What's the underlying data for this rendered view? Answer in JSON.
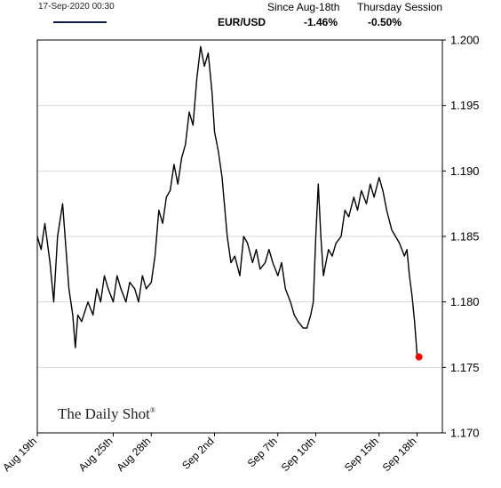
{
  "header": {
    "timestamp": "17-Sep-2020 00:30",
    "since_label": "Since Aug-18th",
    "session_label": "Thursday Session",
    "series_label": "EUR/USD",
    "since_value": "-1.46%",
    "session_value": "-0.50%"
  },
  "watermark": {
    "text": "The Daily Shot",
    "mark": "®"
  },
  "colors": {
    "line": "#000000",
    "legend": "#0b1a3e",
    "endpoint": "#ff0000",
    "grid": "#d9d9d9",
    "border": "#000000"
  },
  "chart_data": {
    "type": "line",
    "title": "",
    "xlabel": "",
    "ylabel": "",
    "ylim": [
      1.17,
      1.2
    ],
    "y_ticks": [
      "1.200",
      "1.195",
      "1.190",
      "1.185",
      "1.180",
      "1.175",
      "1.170"
    ],
    "y_tick_values": [
      1.2,
      1.195,
      1.19,
      1.185,
      1.18,
      1.175,
      1.17
    ],
    "grid": "horizontal",
    "x_ticks": [
      "Aug 19th",
      "Aug 25th",
      "Aug 28th",
      "Sep 2nd",
      "Sep 7th",
      "Sep 10th",
      "Sep 15th",
      "Sep 18th"
    ],
    "x_tick_days": [
      0,
      6,
      9,
      14,
      19,
      22,
      27,
      30
    ],
    "xlim_days": [
      0,
      32
    ],
    "series": [
      {
        "name": "EUR/USD",
        "x_days": [
          0,
          0.3,
          0.6,
          1.0,
          1.3,
          1.6,
          2.0,
          2.5,
          2.8,
          3.0,
          3.2,
          3.5,
          4.0,
          4.4,
          4.7,
          5.0,
          5.3,
          5.6,
          6.0,
          6.3,
          6.6,
          7.0,
          7.3,
          7.7,
          8.0,
          8.3,
          8.6,
          9.0,
          9.3,
          9.6,
          9.9,
          10.2,
          10.5,
          10.8,
          11.1,
          11.4,
          11.7,
          12.0,
          12.3,
          12.6,
          12.9,
          13.2,
          13.5,
          13.8,
          14.0,
          14.3,
          14.6,
          15.0,
          15.3,
          15.6,
          16.0,
          16.3,
          16.6,
          17.0,
          17.3,
          17.6,
          18.0,
          18.3,
          18.6,
          19.0,
          19.3,
          19.6,
          20.0,
          20.3,
          20.6,
          21.0,
          21.3,
          21.6,
          21.8,
          22.0,
          22.2,
          22.4,
          22.6,
          22.8,
          23.0,
          23.3,
          23.6,
          24.0,
          24.3,
          24.6,
          25.0,
          25.3,
          25.6,
          26.0,
          26.3,
          26.6,
          27.0,
          27.3,
          27.6,
          28.0,
          28.3,
          28.6,
          29.0,
          29.2,
          29.4,
          29.6,
          29.8,
          30.0,
          30.15
        ],
        "values": [
          1.185,
          1.184,
          1.186,
          1.183,
          1.18,
          1.185,
          1.1875,
          1.181,
          1.179,
          1.1765,
          1.179,
          1.1785,
          1.18,
          1.179,
          1.181,
          1.18,
          1.182,
          1.181,
          1.18,
          1.182,
          1.181,
          1.18,
          1.1815,
          1.181,
          1.18,
          1.182,
          1.181,
          1.1815,
          1.1835,
          1.187,
          1.186,
          1.188,
          1.1885,
          1.1905,
          1.189,
          1.191,
          1.192,
          1.1945,
          1.1935,
          1.197,
          1.1995,
          1.198,
          1.199,
          1.196,
          1.193,
          1.1915,
          1.1895,
          1.185,
          1.183,
          1.1835,
          1.182,
          1.185,
          1.1845,
          1.183,
          1.184,
          1.1825,
          1.183,
          1.184,
          1.183,
          1.182,
          1.183,
          1.181,
          1.18,
          1.179,
          1.1785,
          1.178,
          1.178,
          1.179,
          1.18,
          1.185,
          1.189,
          1.185,
          1.182,
          1.183,
          1.184,
          1.1835,
          1.1845,
          1.185,
          1.187,
          1.1865,
          1.188,
          1.187,
          1.1885,
          1.1875,
          1.189,
          1.188,
          1.1895,
          1.1885,
          1.187,
          1.1855,
          1.185,
          1.1845,
          1.1835,
          1.184,
          1.182,
          1.1805,
          1.1785,
          1.176,
          1.1758
        ]
      }
    ],
    "endpoint": {
      "x_day": 30.15,
      "value": 1.1758
    }
  }
}
